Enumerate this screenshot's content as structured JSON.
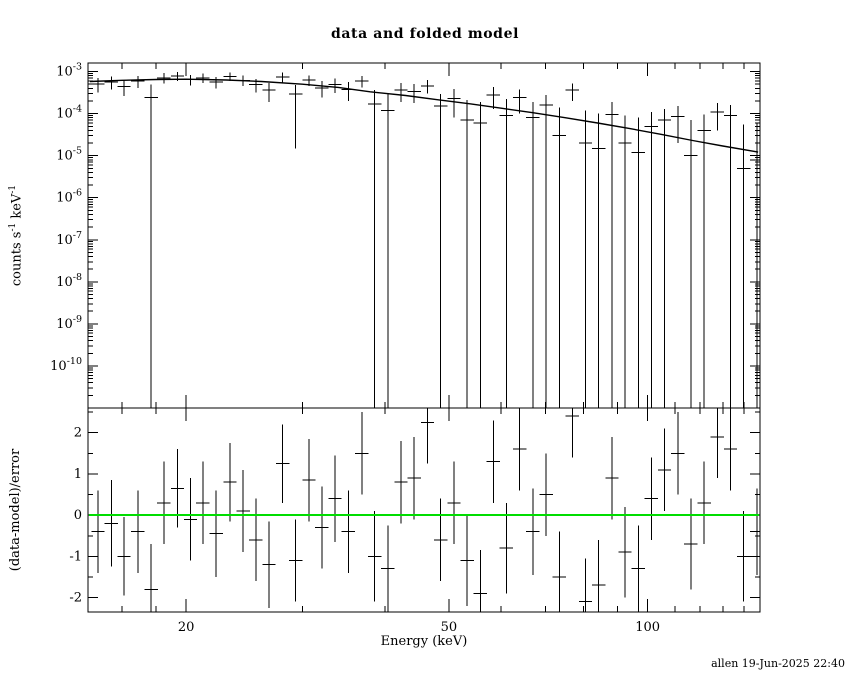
{
  "title": "data and folded model",
  "footer": "allen 19-Jun-2025 22:40",
  "xlabel": "Energy (keV)",
  "colors": {
    "background": "#ffffff",
    "axes": "#000000",
    "data": "#000000",
    "model": "#000000",
    "zero_line": "#00dd00"
  },
  "chart_data": [
    {
      "type": "scatter",
      "name": "spectrum",
      "title": "data and folded model",
      "ylabel": "counts s^-1 keV^-1",
      "xscale": "log",
      "yscale": "log",
      "xlim": [
        14.2,
        148
      ],
      "ylim": [
        1e-11,
        0.0016
      ],
      "x_major_ticks": [
        20,
        50,
        100
      ],
      "x_minor_ticks": [
        16,
        18,
        30,
        40,
        60,
        70,
        80,
        90,
        110,
        120,
        130,
        140
      ],
      "y_major_exponents": [
        -3,
        -4,
        -5,
        -6,
        -7,
        -8,
        -9,
        -10
      ],
      "bin_width_factor": 1.0235,
      "note": "rate_lo of 0 means the lower error bar extends below the plotted range",
      "columns": [
        "energy_keV",
        "rate",
        "rate_lo",
        "rate_hi"
      ],
      "points": [
        [
          14.7,
          0.0005,
          0.00032,
          0.0007
        ],
        [
          15.4,
          0.00056,
          0.00038,
          0.00076
        ],
        [
          16.1,
          0.00044,
          0.00026,
          0.00063
        ],
        [
          16.9,
          0.00059,
          0.00041,
          0.00079
        ],
        [
          17.7,
          0.00024,
          0,
          0.00049
        ],
        [
          18.5,
          0.00071,
          0.00052,
          0.00092
        ],
        [
          19.4,
          0.00079,
          0.0006,
          0.00099
        ],
        [
          20.3,
          0.00064,
          0.00047,
          0.00083
        ],
        [
          21.2,
          0.00071,
          0.00053,
          0.0009
        ],
        [
          22.2,
          0.00057,
          0.0004,
          0.00075
        ],
        [
          23.3,
          0.00077,
          0.00059,
          0.00096
        ],
        [
          24.4,
          0.00062,
          0.00045,
          0.0008
        ],
        [
          25.5,
          0.00049,
          0.00032,
          0.00067
        ],
        [
          26.7,
          0.00036,
          0.00019,
          0.00054
        ],
        [
          28.0,
          0.00074,
          0.00055,
          0.00094
        ],
        [
          29.3,
          0.00029,
          1.5e-05,
          0.00048
        ],
        [
          30.7,
          0.00063,
          0.00046,
          0.00081
        ],
        [
          32.1,
          0.00041,
          0.00024,
          0.00059
        ],
        [
          33.6,
          0.00049,
          0.00031,
          0.00068
        ],
        [
          35.2,
          0.00038,
          0.0002,
          0.00056
        ],
        [
          36.9,
          0.0006,
          0.00042,
          0.00079
        ],
        [
          38.6,
          0.00017,
          0,
          0.00036
        ],
        [
          40.4,
          0.00012,
          0,
          0.00029
        ],
        [
          42.3,
          0.00036,
          0.00019,
          0.00053
        ],
        [
          44.3,
          0.00034,
          0.00018,
          0.00051
        ],
        [
          46.4,
          0.00046,
          0.0003,
          0.00063
        ],
        [
          48.6,
          0.00015,
          0,
          0.00029
        ],
        [
          50.9,
          0.00023,
          8e-05,
          0.00039
        ],
        [
          53.3,
          7e-05,
          0,
          0.00021
        ],
        [
          55.8,
          6e-05,
          0,
          0.00019
        ],
        [
          58.4,
          0.00028,
          0.00013,
          0.00043
        ],
        [
          61.1,
          9e-05,
          0,
          0.00022
        ],
        [
          64.0,
          0.00024,
          0.0001,
          0.00038
        ],
        [
          67.0,
          8e-05,
          0,
          0.00019
        ],
        [
          70.2,
          0.00016,
          0,
          0.00028
        ],
        [
          73.5,
          3e-05,
          0,
          0.00014
        ],
        [
          76.9,
          0.00036,
          0.0002,
          0.00052
        ],
        [
          80.5,
          2e-05,
          0,
          0.00012
        ],
        [
          84.3,
          1.5e-05,
          0,
          0.0001
        ],
        [
          88.3,
          9.5e-05,
          0,
          0.00019
        ],
        [
          92.4,
          2e-05,
          0,
          9e-05
        ],
        [
          96.8,
          1.2e-05,
          0,
          8e-05
        ],
        [
          101.3,
          5e-05,
          0,
          0.00011
        ],
        [
          106.1,
          7e-05,
          0,
          0.00013
        ],
        [
          111.1,
          8.5e-05,
          2e-05,
          0.00015
        ],
        [
          116.3,
          1e-05,
          0,
          7e-05
        ],
        [
          121.8,
          4e-05,
          0,
          9.5e-05
        ],
        [
          127.5,
          0.00011,
          4e-05,
          0.00018
        ],
        [
          133.5,
          9e-05,
          0,
          0.00016
        ],
        [
          139.8,
          5e-06,
          0,
          5.5e-05
        ],
        [
          146.4,
          8e-06,
          0,
          6e-05
        ]
      ],
      "model_columns": [
        "energy_keV",
        "rate"
      ],
      "model": [
        [
          14.3,
          0.00058
        ],
        [
          16,
          0.00062
        ],
        [
          18,
          0.00065
        ],
        [
          20,
          0.00066
        ],
        [
          23,
          0.00063
        ],
        [
          26,
          0.00058
        ],
        [
          30,
          0.0005
        ],
        [
          34,
          0.00042
        ],
        [
          38,
          0.00033
        ],
        [
          43,
          0.00027
        ],
        [
          48,
          0.000215
        ],
        [
          54,
          0.00017
        ],
        [
          60,
          0.000135
        ],
        [
          67,
          0.000105
        ],
        [
          75,
          8e-05
        ],
        [
          84,
          6e-05
        ],
        [
          94,
          4.4e-05
        ],
        [
          105,
          3.2e-05
        ],
        [
          117,
          2.3e-05
        ],
        [
          130,
          1.7e-05
        ],
        [
          147,
          1.22e-05
        ]
      ]
    },
    {
      "type": "scatter",
      "name": "residuals",
      "ylabel": "(data-model)/error",
      "xlabel": "Energy (keV)",
      "xscale": "log",
      "yscale": "linear",
      "xlim": [
        14.2,
        148
      ],
      "ylim": [
        -2.35,
        2.6
      ],
      "y_ticks": [
        -2,
        -1,
        0,
        1,
        2
      ],
      "y_minor_ticks": [
        -1.5,
        -0.5,
        0.5,
        1.5,
        2.5
      ],
      "zero_line_y": 0,
      "columns": [
        "energy_keV",
        "sigma",
        "err"
      ],
      "points": [
        [
          14.7,
          -0.4,
          1.0
        ],
        [
          15.4,
          -0.2,
          1.05
        ],
        [
          16.1,
          -1.0,
          0.95
        ],
        [
          16.9,
          -0.4,
          1.0
        ],
        [
          17.7,
          -1.8,
          1.1
        ],
        [
          18.5,
          0.3,
          1.0
        ],
        [
          19.4,
          0.65,
          0.95
        ],
        [
          20.3,
          -0.1,
          1.0
        ],
        [
          21.2,
          0.3,
          1.0
        ],
        [
          22.2,
          -0.45,
          1.05
        ],
        [
          23.3,
          0.8,
          0.95
        ],
        [
          24.4,
          0.1,
          1.0
        ],
        [
          25.5,
          -0.6,
          1.0
        ],
        [
          26.7,
          -1.2,
          1.05
        ],
        [
          28.0,
          1.25,
          0.95
        ],
        [
          29.3,
          -1.1,
          1.0
        ],
        [
          30.7,
          0.85,
          1.0
        ],
        [
          32.1,
          -0.3,
          1.0
        ],
        [
          33.6,
          0.4,
          1.05
        ],
        [
          35.2,
          -0.4,
          1.0
        ],
        [
          36.9,
          1.5,
          1.0
        ],
        [
          38.6,
          -1.0,
          1.1
        ],
        [
          40.4,
          -1.3,
          1.05
        ],
        [
          42.3,
          0.8,
          1.0
        ],
        [
          44.3,
          0.9,
          1.0
        ],
        [
          46.4,
          2.25,
          1.0
        ],
        [
          48.6,
          -0.6,
          1.0
        ],
        [
          50.9,
          0.3,
          1.0
        ],
        [
          53.3,
          -1.1,
          1.1
        ],
        [
          55.8,
          -1.9,
          1.05
        ],
        [
          58.4,
          1.3,
          1.0
        ],
        [
          61.1,
          -0.8,
          1.1
        ],
        [
          64.0,
          1.6,
          1.0
        ],
        [
          67.0,
          -0.4,
          1.05
        ],
        [
          70.2,
          0.5,
          1.0
        ],
        [
          73.5,
          -1.5,
          1.1
        ],
        [
          76.9,
          2.4,
          1.0
        ],
        [
          80.5,
          -2.1,
          1.05
        ],
        [
          84.3,
          -1.7,
          1.1
        ],
        [
          88.3,
          0.9,
          1.0
        ],
        [
          92.4,
          -0.9,
          1.1
        ],
        [
          96.8,
          -1.3,
          1.05
        ],
        [
          101.3,
          0.4,
          1.0
        ],
        [
          106.1,
          1.1,
          1.0
        ],
        [
          111.1,
          1.5,
          1.0
        ],
        [
          116.3,
          -0.7,
          1.1
        ],
        [
          121.8,
          0.3,
          1.0
        ],
        [
          127.5,
          1.9,
          1.0
        ],
        [
          133.5,
          1.6,
          1.0
        ],
        [
          139.8,
          -1.0,
          1.1
        ],
        [
          146.4,
          -0.4,
          1.05
        ]
      ]
    }
  ]
}
